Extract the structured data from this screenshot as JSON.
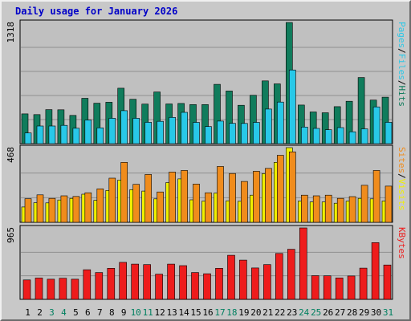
{
  "title": "Daily usage for January 2026",
  "colors": {
    "hits": "#107c5c",
    "files": "#28c8e8",
    "visits": "#f0f000",
    "sites": "#f08c1c",
    "kbytes": "#ee1c1c",
    "grid": "#909090",
    "axis_text": "#000000",
    "weekend_text": "#008060"
  },
  "chart_data": [
    {
      "type": "bar",
      "name": "hits-files",
      "categories": [
        "1",
        "2",
        "3",
        "4",
        "5",
        "6",
        "7",
        "8",
        "9",
        "10",
        "11",
        "12",
        "13",
        "14",
        "15",
        "16",
        "17",
        "18",
        "19",
        "20",
        "21",
        "22",
        "23",
        "24",
        "25",
        "26",
        "27",
        "28",
        "29",
        "30",
        "31"
      ],
      "y_label_max": "1318",
      "ylim": [
        0,
        1318
      ],
      "series": [
        {
          "name": "Hits",
          "color_key": "hits",
          "values": [
            324,
            316,
            370,
            368,
            307,
            493,
            440,
            450,
            603,
            483,
            430,
            562,
            432,
            437,
            425,
            425,
            645,
            573,
            417,
            526,
            683,
            650,
            1318,
            420,
            345,
            336,
            402,
            461,
            719,
            474,
            505
          ]
        },
        {
          "name": "Files",
          "color_key": "files",
          "values": [
            116,
            192,
            192,
            199,
            168,
            257,
            172,
            276,
            359,
            276,
            232,
            243,
            285,
            340,
            231,
            186,
            245,
            221,
            220,
            231,
            376,
            452,
            801,
            181,
            166,
            151,
            175,
            129,
            161,
            400,
            232
          ]
        }
      ],
      "legend": [
        "Pages",
        "Files",
        "Hits"
      ],
      "legend_colors": [
        "files",
        "files",
        "hits"
      ],
      "legend_separator": "/"
    },
    {
      "type": "bar",
      "name": "visits-sites",
      "categories": [
        "1",
        "2",
        "3",
        "4",
        "5",
        "6",
        "7",
        "8",
        "9",
        "10",
        "11",
        "12",
        "13",
        "14",
        "15",
        "16",
        "17",
        "18",
        "19",
        "20",
        "21",
        "22",
        "23",
        "24",
        "25",
        "26",
        "27",
        "28",
        "29",
        "30",
        "31"
      ],
      "y_label_max": "468",
      "ylim": [
        0,
        468
      ],
      "series": [
        {
          "name": "Visits",
          "color_key": "visits",
          "values": [
            96,
            123,
            122,
            140,
            150,
            176,
            138,
            200,
            265,
            205,
            196,
            147,
            249,
            272,
            141,
            133,
            183,
            135,
            132,
            170,
            305,
            376,
            468,
            133,
            128,
            128,
            120,
            133,
            150,
            147,
            134
          ]
        },
        {
          "name": "Sites",
          "color_key": "sites",
          "values": [
            148,
            172,
            150,
            166,
            162,
            185,
            210,
            277,
            376,
            238,
            300,
            190,
            315,
            325,
            240,
            185,
            350,
            306,
            256,
            320,
            338,
            420,
            442,
            170,
            166,
            170,
            150,
            161,
            232,
            325,
            227
          ]
        }
      ],
      "legend": [
        "Sites",
        "Visits"
      ],
      "legend_colors": [
        "sites",
        "visits"
      ],
      "legend_separator": "/"
    },
    {
      "type": "bar",
      "name": "kbytes",
      "categories": [
        "1",
        "2",
        "3",
        "4",
        "5",
        "6",
        "7",
        "8",
        "9",
        "10",
        "11",
        "12",
        "13",
        "14",
        "15",
        "16",
        "17",
        "18",
        "19",
        "20",
        "21",
        "22",
        "23",
        "24",
        "25",
        "26",
        "27",
        "28",
        "29",
        "30",
        "31"
      ],
      "y_label_max": "965",
      "ylim": [
        0,
        965
      ],
      "series": [
        {
          "name": "KBytes",
          "color_key": "kbytes",
          "values": [
            262,
            288,
            272,
            285,
            272,
            400,
            362,
            420,
            500,
            476,
            470,
            340,
            476,
            455,
            362,
            346,
            420,
            595,
            530,
            424,
            470,
            620,
            677,
            965,
            320,
            318,
            290,
            316,
            422,
            767,
            464
          ]
        }
      ],
      "legend": [
        "KBytes"
      ],
      "legend_colors": [
        "kbytes"
      ],
      "legend_separator": ""
    }
  ],
  "weekend_days": [
    "3",
    "4",
    "10",
    "11",
    "17",
    "18",
    "24",
    "25",
    "31"
  ]
}
